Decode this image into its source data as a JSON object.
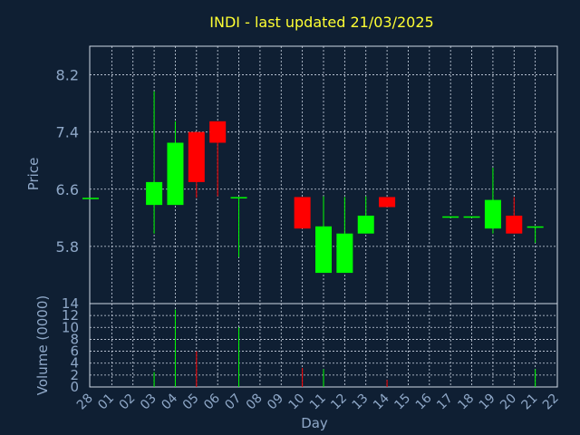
{
  "chart_data": [
    {
      "type": "candlestick",
      "title": "INDI - last updated 21/03/2025",
      "ylabel": "Price",
      "ylim": [
        5.0,
        8.6
      ],
      "yticks": [
        5.8,
        6.6,
        7.4,
        8.2
      ],
      "categories": [
        "28",
        "01",
        "02",
        "03",
        "04",
        "05",
        "06",
        "07",
        "08",
        "09",
        "10",
        "11",
        "12",
        "13",
        "14",
        "15",
        "16",
        "17",
        "18",
        "19",
        "20",
        "21",
        "22"
      ],
      "candles": [
        {
          "day": "28",
          "open": 6.48,
          "high": 6.48,
          "low": 6.48,
          "close": 6.48
        },
        {
          "day": "03",
          "open": 6.38,
          "high": 7.97,
          "low": 5.98,
          "close": 6.7
        },
        {
          "day": "04",
          "open": 6.38,
          "high": 7.55,
          "low": 6.38,
          "close": 7.25
        },
        {
          "day": "05",
          "open": 7.4,
          "high": 7.4,
          "low": 6.48,
          "close": 6.7
        },
        {
          "day": "06",
          "open": 7.55,
          "high": 7.55,
          "low": 6.5,
          "close": 7.25
        },
        {
          "day": "07",
          "open": 6.49,
          "high": 6.49,
          "low": 5.65,
          "close": 6.49
        },
        {
          "day": "10",
          "open": 6.49,
          "high": 6.49,
          "low": 6.05,
          "close": 6.05
        },
        {
          "day": "11",
          "open": 5.43,
          "high": 6.5,
          "low": 5.43,
          "close": 6.08
        },
        {
          "day": "12",
          "open": 5.43,
          "high": 6.49,
          "low": 5.43,
          "close": 5.98
        },
        {
          "day": "13",
          "open": 5.98,
          "high": 6.5,
          "low": 5.98,
          "close": 6.23
        },
        {
          "day": "14",
          "open": 6.49,
          "high": 6.49,
          "low": 6.35,
          "close": 6.35
        },
        {
          "day": "17",
          "open": 6.22,
          "high": 6.22,
          "low": 6.22,
          "close": 6.22
        },
        {
          "day": "18",
          "open": 6.22,
          "high": 6.22,
          "low": 6.22,
          "close": 6.22
        },
        {
          "day": "19",
          "open": 6.05,
          "high": 6.9,
          "low": 5.98,
          "close": 6.45
        },
        {
          "day": "20",
          "open": 6.23,
          "high": 6.49,
          "low": 5.98,
          "close": 5.98
        },
        {
          "day": "21",
          "open": 6.08,
          "high": 6.08,
          "low": 5.85,
          "close": 6.08
        }
      ],
      "up_color": "#00ff00",
      "down_color": "#ff0000",
      "grid": true
    },
    {
      "type": "bar",
      "ylabel": "Volume (0000)",
      "xlabel": "Day",
      "ylim": [
        0,
        14
      ],
      "yticks": [
        0,
        2,
        4,
        6,
        8,
        10,
        12,
        14
      ],
      "bars": [
        {
          "day": "03",
          "value": 2.5,
          "dir": "up"
        },
        {
          "day": "04",
          "value": 13.0,
          "dir": "up"
        },
        {
          "day": "05",
          "value": 6.0,
          "dir": "down"
        },
        {
          "day": "07",
          "value": 10.0,
          "dir": "up"
        },
        {
          "day": "10",
          "value": 3.2,
          "dir": "down"
        },
        {
          "day": "11",
          "value": 3.0,
          "dir": "up"
        },
        {
          "day": "14",
          "value": 1.2,
          "dir": "down"
        },
        {
          "day": "21",
          "value": 3.0,
          "dir": "up"
        }
      ]
    }
  ]
}
